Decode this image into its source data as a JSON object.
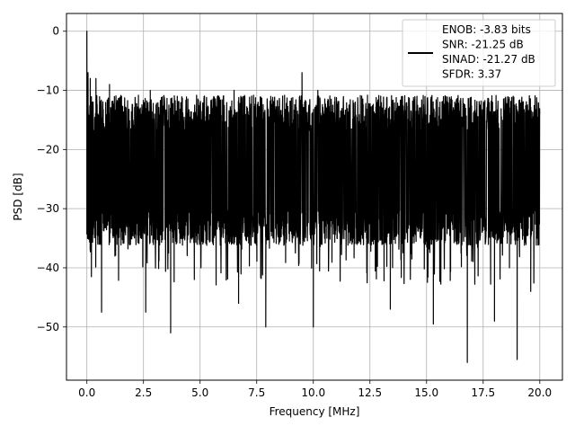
{
  "chart_data": {
    "type": "line",
    "title": "",
    "xlabel": "Frequency [MHz]",
    "ylabel": "PSD [dB]",
    "xlim": [
      -0.9,
      21.0
    ],
    "ylim": [
      -59.0,
      3.0
    ],
    "xticks": [
      0.0,
      2.5,
      5.0,
      7.5,
      10.0,
      12.5,
      15.0,
      17.5,
      20.0
    ],
    "xtick_labels": [
      "0.0",
      "2.5",
      "5.0",
      "7.5",
      "10.0",
      "12.5",
      "15.0",
      "17.5",
      "20.0"
    ],
    "yticks": [
      0,
      -10,
      -20,
      -30,
      -40,
      -50
    ],
    "ytick_labels": [
      "0",
      "−10",
      "−20",
      "−30",
      "−40",
      "−50"
    ],
    "grid": true,
    "legend_placement": "top-right",
    "legend_lines": [
      "ENOB: -3.83 bits",
      "SNR: -21.25 dB",
      "SINAD: -21.27 dB",
      "SFDR: 3.37"
    ],
    "series": [
      {
        "color": "#000000",
        "x_range": [
          0.0,
          20.0
        ],
        "typical_upper_envelope": -15,
        "typical_lower_envelope": -32,
        "noise_mean": -21,
        "peaks": [
          [
            0.0,
            0.0
          ],
          [
            0.05,
            -7
          ],
          [
            0.15,
            -8
          ],
          [
            0.4,
            -8
          ],
          [
            9.5,
            -7
          ],
          [
            1.0,
            -9
          ],
          [
            2.8,
            -10
          ],
          [
            6.5,
            -10
          ],
          [
            10.2,
            -10
          ]
        ],
        "deep_dips": [
          [
            0.2,
            -41.5
          ],
          [
            0.65,
            -47.5
          ],
          [
            2.6,
            -47.5
          ],
          [
            3.7,
            -51
          ],
          [
            6.7,
            -46
          ],
          [
            7.9,
            -50
          ],
          [
            10.0,
            -50
          ],
          [
            13.4,
            -47
          ],
          [
            15.3,
            -49.5
          ],
          [
            16.8,
            -56
          ],
          [
            18.0,
            -49
          ],
          [
            19.0,
            -55.5
          ],
          [
            19.6,
            -44
          ]
        ]
      }
    ]
  }
}
